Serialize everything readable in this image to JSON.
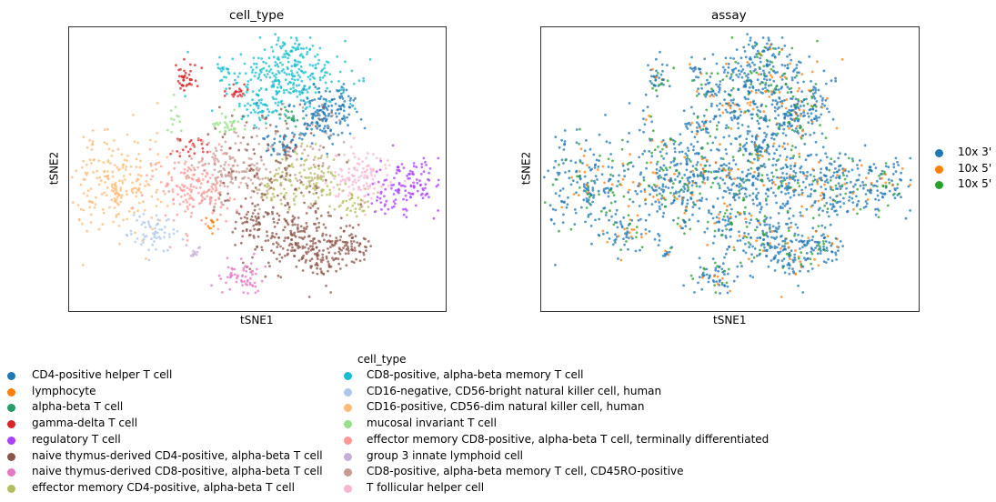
{
  "chart_data": [
    {
      "type": "scatter",
      "title": "cell_type",
      "xlabel": "tSNE1",
      "ylabel": "tSNE2",
      "grid": false,
      "ticks": false,
      "hue": "cell_type",
      "legend_placement": "bottom",
      "legend_title": "cell_type",
      "categories": [
        {
          "name": "CD4-positive helper T cell",
          "color": "#1f77b4"
        },
        {
          "name": "lymphocyte",
          "color": "#ff7f0e"
        },
        {
          "name": "alpha-beta T cell",
          "color": "#279e68"
        },
        {
          "name": "gamma-delta T cell",
          "color": "#d62728"
        },
        {
          "name": "regulatory T cell",
          "color": "#aa40fc"
        },
        {
          "name": "naive thymus-derived CD4-positive, alpha-beta T cell",
          "color": "#8c564b"
        },
        {
          "name": "naive thymus-derived CD8-positive, alpha-beta T cell",
          "color": "#e377c2"
        },
        {
          "name": "effector memory CD4-positive, alpha-beta T cell",
          "color": "#b5bd61"
        },
        {
          "name": "CD8-positive, alpha-beta memory T cell",
          "color": "#17becf"
        },
        {
          "name": "CD16-negative, CD56-bright natural killer cell, human",
          "color": "#aec7e8"
        },
        {
          "name": "CD16-positive, CD56-dim natural killer cell, human",
          "color": "#ffbb78"
        },
        {
          "name": "mucosal invariant T cell",
          "color": "#98df8a"
        },
        {
          "name": "effector memory CD8-positive, alpha-beta T cell, terminally differentiated",
          "color": "#ff9896"
        },
        {
          "name": "group 3 innate lymphoid cell",
          "color": "#c5b0d5"
        },
        {
          "name": "CD8-positive, alpha-beta memory T cell, CD45RO-positive",
          "color": "#c49c94"
        },
        {
          "name": "T follicular helper cell",
          "color": "#f7b6d2"
        }
      ]
    },
    {
      "type": "scatter",
      "title": "assay",
      "xlabel": "tSNE1",
      "ylabel": "tSNE2",
      "grid": false,
      "ticks": false,
      "hue": "assay",
      "legend_placement": "right",
      "categories": [
        {
          "name": "10x 3'",
          "color": "#1f77b4"
        },
        {
          "name": "10x 5'",
          "color": "#ff7f0e"
        },
        {
          "name": "10x 5'",
          "color": "#2ca02c"
        }
      ]
    }
  ]
}
